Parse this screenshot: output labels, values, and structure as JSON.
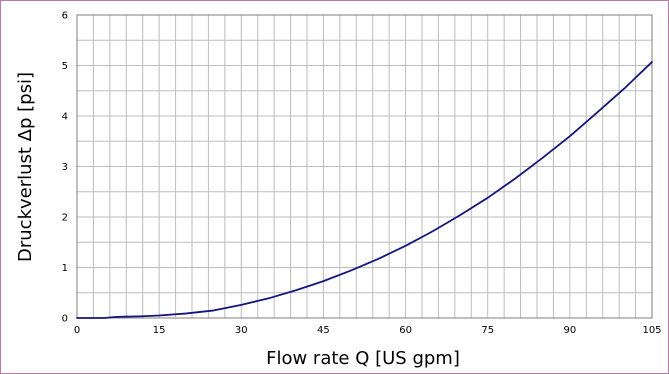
{
  "chart_data": {
    "type": "line",
    "title": "",
    "xlabel": "Flow rate Q [US gpm]",
    "ylabel": "Druckverlust Δp [psi]",
    "xlim": [
      0,
      105
    ],
    "ylim": [
      0,
      6
    ],
    "x_ticks": [
      0,
      15,
      30,
      45,
      60,
      75,
      90,
      105
    ],
    "x_tick_labels": [
      "0",
      "15",
      "30",
      "45",
      "60",
      "75",
      "90",
      "105"
    ],
    "y_ticks": [
      0,
      1,
      2,
      3,
      4,
      5,
      6
    ],
    "y_tick_labels": [
      "0",
      "1",
      "2",
      "3",
      "4",
      "5",
      "6"
    ],
    "x_minor_step": 3,
    "y_minor_step": 0.5,
    "grid": true,
    "legend": "none",
    "series": [
      {
        "color": "#16157a",
        "x": [
          0,
          5,
          6,
          7,
          8,
          10,
          12,
          15,
          20,
          25,
          30,
          35,
          40,
          45,
          50,
          55,
          60,
          65,
          70,
          75,
          80,
          85,
          90,
          95,
          100,
          105
        ],
        "y": [
          0,
          0,
          0.01,
          0.02,
          0.025,
          0.03,
          0.035,
          0.05,
          0.09,
          0.15,
          0.26,
          0.39,
          0.55,
          0.73,
          0.94,
          1.17,
          1.43,
          1.72,
          2.04,
          2.38,
          2.76,
          3.17,
          3.6,
          4.07,
          4.55,
          5.07
        ]
      }
    ]
  },
  "colors": {
    "grid": "#bdbdbd",
    "axis": "#7f7f7f",
    "text": "#000000",
    "border": "#b57aa6"
  }
}
